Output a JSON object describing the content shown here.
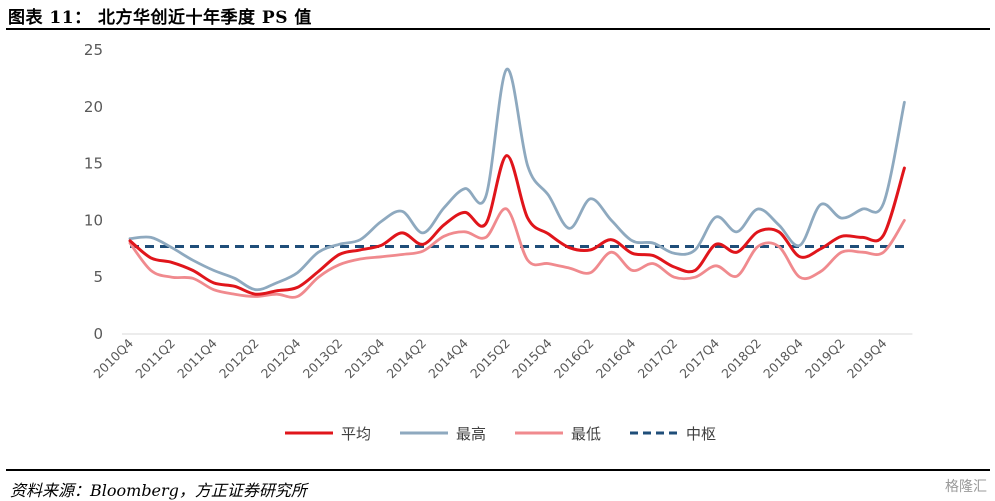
{
  "header": {
    "title": "图表 11： 北方华创近十年季度 PS 值"
  },
  "footer": {
    "source": "资料来源：Bloomberg，方正证券研究所",
    "watermark": "格隆汇"
  },
  "colors": {
    "avg": "#e0151b",
    "max": "#8ea9bf",
    "min": "#f08a8e",
    "center": "#1f4e79"
  },
  "chart_data": {
    "type": "line",
    "title": "",
    "xlabel": "",
    "ylabel": "",
    "ylim": [
      0,
      25
    ],
    "yticks": [
      0,
      5,
      10,
      15,
      20,
      25
    ],
    "grid": false,
    "legend_position": "bottom",
    "x": [
      "2010Q4",
      "2011Q1",
      "2011Q2",
      "2011Q3",
      "2011Q4",
      "2012Q1",
      "2012Q2",
      "2012Q3",
      "2012Q4",
      "2013Q1",
      "2013Q2",
      "2013Q3",
      "2013Q4",
      "2014Q1",
      "2014Q2",
      "2014Q3",
      "2014Q4",
      "2015Q1",
      "2015Q2",
      "2015Q3",
      "2015Q4",
      "2016Q1",
      "2016Q2",
      "2016Q3",
      "2016Q4",
      "2017Q1",
      "2017Q2",
      "2017Q3",
      "2017Q4",
      "2018Q1",
      "2018Q2",
      "2018Q3",
      "2018Q4",
      "2019Q1",
      "2019Q2",
      "2019Q3",
      "2019Q4",
      "2020Q1"
    ],
    "xticklabels": [
      "2010Q4",
      "2011Q2",
      "2011Q4",
      "2012Q2",
      "2012Q4",
      "2013Q2",
      "2013Q4",
      "2014Q2",
      "2014Q4",
      "2015Q2",
      "2015Q4",
      "2016Q2",
      "2016Q4",
      "2017Q2",
      "2017Q4",
      "2018Q2",
      "2018Q4",
      "2019Q2",
      "2019Q4"
    ],
    "series": [
      {
        "key": "avg",
        "name": "平均",
        "style": "solid",
        "values": [
          8.2,
          6.7,
          6.3,
          5.6,
          4.5,
          4.2,
          3.5,
          3.8,
          4.1,
          5.5,
          7.0,
          7.4,
          7.8,
          8.9,
          7.9,
          9.6,
          10.7,
          9.7,
          15.7,
          10.2,
          8.8,
          7.6,
          7.4,
          8.3,
          7.1,
          6.9,
          5.9,
          5.6,
          7.9,
          7.2,
          9.0,
          9.0,
          6.8,
          7.5,
          8.6,
          8.5,
          8.7,
          14.6
        ]
      },
      {
        "key": "max",
        "name": "最高",
        "style": "solid",
        "values": [
          8.4,
          8.5,
          7.6,
          6.5,
          5.6,
          4.9,
          3.9,
          4.5,
          5.4,
          7.2,
          7.9,
          8.3,
          9.9,
          10.8,
          8.9,
          11.1,
          12.8,
          12.1,
          23.3,
          14.8,
          12.2,
          9.3,
          11.9,
          10.0,
          8.2,
          8.0,
          7.1,
          7.4,
          10.3,
          9.0,
          11.0,
          9.6,
          7.8,
          11.4,
          10.2,
          11.0,
          11.5,
          20.4
        ]
      },
      {
        "key": "min",
        "name": "最低",
        "style": "solid",
        "values": [
          8.0,
          5.6,
          5.0,
          4.9,
          3.9,
          3.5,
          3.3,
          3.5,
          3.3,
          5.0,
          6.1,
          6.6,
          6.8,
          7.0,
          7.3,
          8.6,
          9.0,
          8.5,
          11.0,
          6.5,
          6.2,
          5.8,
          5.4,
          7.2,
          5.6,
          6.2,
          5.0,
          5.0,
          6.0,
          5.1,
          7.7,
          7.7,
          5.0,
          5.5,
          7.2,
          7.2,
          7.2,
          10.0
        ]
      },
      {
        "key": "center",
        "name": "中枢",
        "style": "dashed",
        "values": [
          7.7,
          7.7,
          7.7,
          7.7,
          7.7,
          7.7,
          7.7,
          7.7,
          7.7,
          7.7,
          7.7,
          7.7,
          7.7,
          7.7,
          7.7,
          7.7,
          7.7,
          7.7,
          7.7,
          7.7,
          7.7,
          7.7,
          7.7,
          7.7,
          7.7,
          7.7,
          7.7,
          7.7,
          7.7,
          7.7,
          7.7,
          7.7,
          7.7,
          7.7,
          7.7,
          7.7,
          7.7,
          7.7
        ]
      }
    ]
  }
}
